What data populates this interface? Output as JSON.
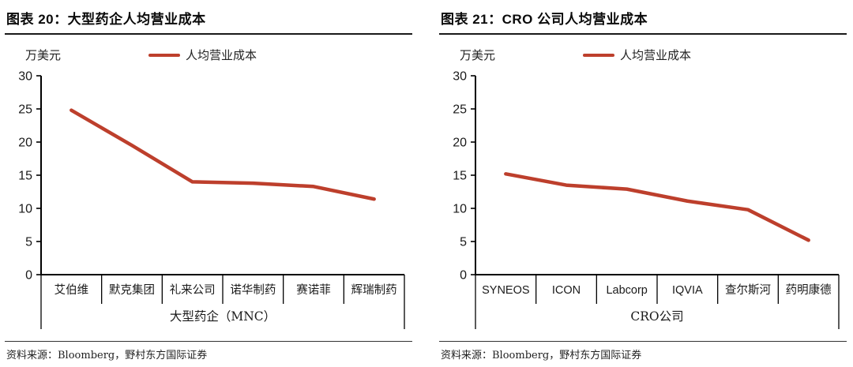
{
  "accent_color": "#bd3f2c",
  "axis_color": "#000000",
  "chart_data": [
    {
      "type": "line",
      "title": "图表 20：大型药企人均营业成本",
      "unit_label": "万美元",
      "legend_position": "top-center",
      "grid": false,
      "categories": [
        "艾伯维",
        "默克集团",
        "礼来公司",
        "诺华制药",
        "赛诺菲",
        "辉瑞制药"
      ],
      "series": [
        {
          "name": "人均营业成本",
          "values": [
            24.8,
            19.5,
            14.0,
            13.8,
            13.3,
            11.4
          ]
        }
      ],
      "xlabel": "大型药企（MNC）",
      "ylabel": "",
      "ylim": [
        0,
        30
      ],
      "yticks": [
        0,
        5,
        10,
        15,
        20,
        25,
        30
      ],
      "line_color": "#bd3f2c",
      "source": "资料来源：Bloomberg，野村东方国际证券"
    },
    {
      "type": "line",
      "title": "图表 21：CRO 公司人均营业成本",
      "unit_label": "万美元",
      "legend_position": "top-center",
      "grid": false,
      "categories": [
        "SYNEOS",
        "ICON",
        "Labcorp",
        "IQVIA",
        "查尔斯河",
        "药明康德"
      ],
      "series": [
        {
          "name": "人均营业成本",
          "values": [
            15.2,
            13.5,
            12.9,
            11.1,
            9.8,
            5.2
          ]
        }
      ],
      "xlabel": "CRO公司",
      "ylabel": "",
      "ylim": [
        0,
        30
      ],
      "yticks": [
        0,
        5,
        10,
        15,
        20,
        25,
        30
      ],
      "line_color": "#bd3f2c",
      "source": "资料来源：Bloomberg，野村东方国际证券"
    }
  ]
}
